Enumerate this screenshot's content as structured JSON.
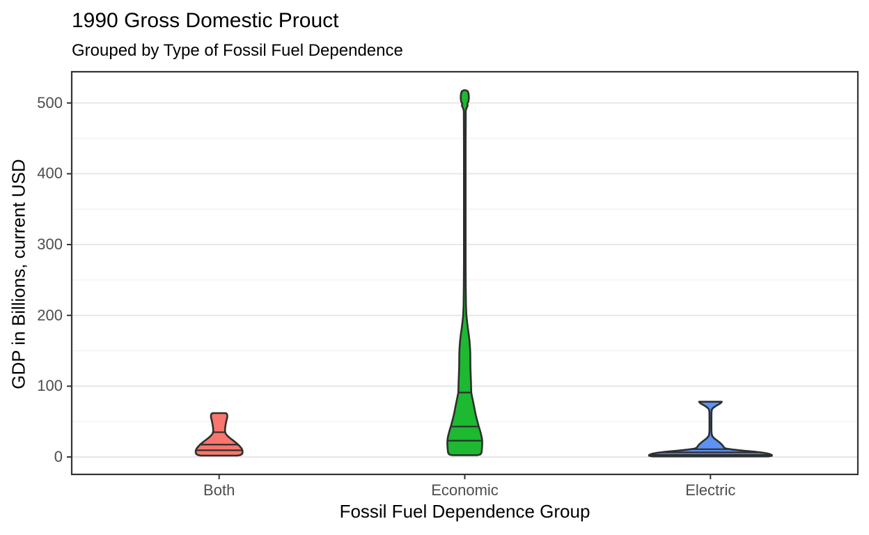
{
  "chart_data": {
    "type": "violin",
    "title": "1990 Gross Domestic Prouct",
    "subtitle": "Grouped by Type of Fossil Fuel Dependence",
    "xlabel": "Fossil Fuel Dependence Group",
    "ylabel": "GDP in Billions, current USD",
    "categories": [
      "Both",
      "Economic",
      "Electric"
    ],
    "y_major_ticks": [
      0,
      100,
      200,
      300,
      400,
      500
    ],
    "y_minor_ticks": [
      50,
      150,
      250,
      350,
      450
    ],
    "ylim": [
      -25,
      545
    ],
    "grid": true,
    "legend": false,
    "series": [
      {
        "name": "Both",
        "fill": "#F8766D",
        "min": 2,
        "max": 62,
        "quantiles": [
          9.5,
          17.5,
          35
        ],
        "profile": [
          [
            62,
            9.5
          ],
          [
            60.5,
            11.3
          ],
          [
            58,
            11.8
          ],
          [
            55,
            11.5
          ],
          [
            51,
            10.4
          ],
          [
            47,
            9.6
          ],
          [
            43,
            8.9
          ],
          [
            39,
            8.5
          ],
          [
            36,
            8.5
          ],
          [
            33,
            9.4
          ],
          [
            30,
            11.8
          ],
          [
            27,
            15.2
          ],
          [
            24,
            19.2
          ],
          [
            21,
            23.2
          ],
          [
            18,
            26.8
          ],
          [
            15,
            29.8
          ],
          [
            12,
            32.3
          ],
          [
            9,
            33.6
          ],
          [
            6,
            33.6
          ],
          [
            4,
            32.8
          ],
          [
            2.8,
            30.5
          ],
          [
            2,
            26.5
          ]
        ]
      },
      {
        "name": "Economic",
        "fill": "#1CB931",
        "min": 2.6,
        "max": 518,
        "quantiles": [
          23,
          43,
          91
        ],
        "profile": [
          [
            518,
            1.5
          ],
          [
            516.5,
            4.2
          ],
          [
            514,
            5.2
          ],
          [
            510,
            5.8
          ],
          [
            506,
            5.8
          ],
          [
            502,
            5.2
          ],
          [
            499,
            3.6
          ],
          [
            496.5,
            4.2
          ],
          [
            493,
            2.6
          ],
          [
            489,
            1.4
          ],
          [
            430,
            1.2
          ],
          [
            350,
            1.2
          ],
          [
            280,
            1.2
          ],
          [
            240,
            1.4
          ],
          [
            215,
            1.7
          ],
          [
            200,
            2.3
          ],
          [
            191,
            3.3
          ],
          [
            182,
            4.4
          ],
          [
            173,
            5.7
          ],
          [
            164,
            6.8
          ],
          [
            155,
            7.5
          ],
          [
            146,
            7.9
          ],
          [
            136,
            8.0
          ],
          [
            126,
            8.1
          ],
          [
            116,
            8.5
          ],
          [
            106,
            8.9
          ],
          [
            98,
            9.1
          ],
          [
            91,
            9.3
          ],
          [
            84,
            10.7
          ],
          [
            77,
            12.2
          ],
          [
            69,
            13.8
          ],
          [
            61,
            15.4
          ],
          [
            54,
            17.1
          ],
          [
            47,
            19.0
          ],
          [
            43,
            20.1
          ],
          [
            38,
            21.7
          ],
          [
            33,
            23.1
          ],
          [
            28,
            24.3
          ],
          [
            24,
            24.9
          ],
          [
            20,
            25.1
          ],
          [
            15,
            24.9
          ],
          [
            10,
            24.5
          ],
          [
            6,
            24.0
          ],
          [
            3.5,
            22.3
          ],
          [
            2.6,
            18.5
          ]
        ]
      },
      {
        "name": "Electric",
        "fill": "#5D92F2",
        "min": 0.8,
        "max": 78,
        "quantiles": [
          3,
          6.5,
          11
        ],
        "profile": [
          [
            78,
            16.3
          ],
          [
            76.5,
            15.2
          ],
          [
            74.5,
            12.2
          ],
          [
            72,
            7.8
          ],
          [
            69.5,
            4.0
          ],
          [
            67,
            2.0
          ],
          [
            63,
            1.5
          ],
          [
            50,
            1.4
          ],
          [
            38,
            1.4
          ],
          [
            33,
            1.7
          ],
          [
            29.5,
            2.6
          ],
          [
            26.5,
            5.2
          ],
          [
            23.5,
            9.2
          ],
          [
            20.5,
            13.2
          ],
          [
            17.5,
            16.4
          ],
          [
            15,
            18.6
          ],
          [
            13,
            19.8
          ],
          [
            11.8,
            23
          ],
          [
            10.5,
            32
          ],
          [
            9,
            47
          ],
          [
            7.5,
            64
          ],
          [
            6,
            76
          ],
          [
            4.5,
            84
          ],
          [
            3,
            88
          ],
          [
            1.8,
            88.3
          ],
          [
            0.8,
            83
          ]
        ]
      }
    ],
    "style": {
      "outline": "#2E2E2E",
      "panel_border": "#333333",
      "grid_major": "#E3E3E3",
      "grid_minor": "#F0F0F0",
      "tick_color": "#333333",
      "tick_label_color": "#4D4D4D",
      "text_color": "#000000",
      "panel_background": "#FFFFFF"
    }
  }
}
